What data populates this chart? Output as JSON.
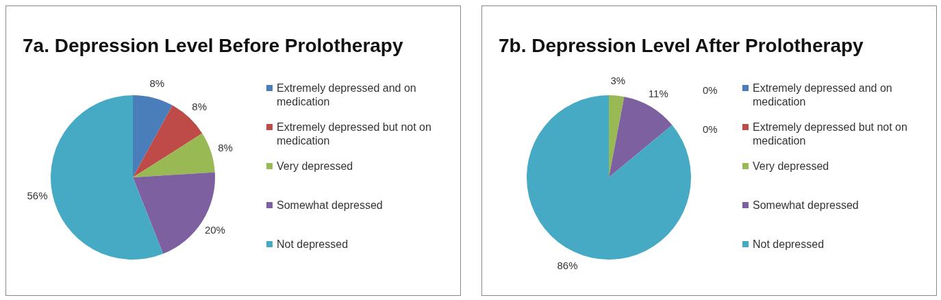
{
  "chart_data": [
    {
      "type": "pie",
      "title": "7a. Depression Level Before Prolotherapy",
      "categories": [
        "Extremely depressed and on medication",
        "Extremely depressed but not on medication",
        "Very depressed",
        "Somewhat depressed",
        "Not depressed"
      ],
      "values": [
        8,
        8,
        8,
        20,
        56
      ],
      "value_labels": [
        "8%",
        "8%",
        "8%",
        "20%",
        "56%"
      ],
      "colors": [
        "#4a7ebb",
        "#be4b48",
        "#98b954",
        "#7d60a0",
        "#46aac5"
      ],
      "legend": "right"
    },
    {
      "type": "pie",
      "title": "7b. Depression Level After Prolotherapy",
      "categories": [
        "Extremely depressed and on medication",
        "Extremely depressed but not on medication",
        "Very depressed",
        "Somewhat depressed",
        "Not depressed"
      ],
      "values": [
        0,
        0,
        3,
        11,
        86
      ],
      "value_labels": [
        "0%",
        "0%",
        "3%",
        "11%",
        "86%"
      ],
      "colors": [
        "#4a7ebb",
        "#be4b48",
        "#98b954",
        "#7d60a0",
        "#46aac5"
      ],
      "legend": "right"
    }
  ]
}
